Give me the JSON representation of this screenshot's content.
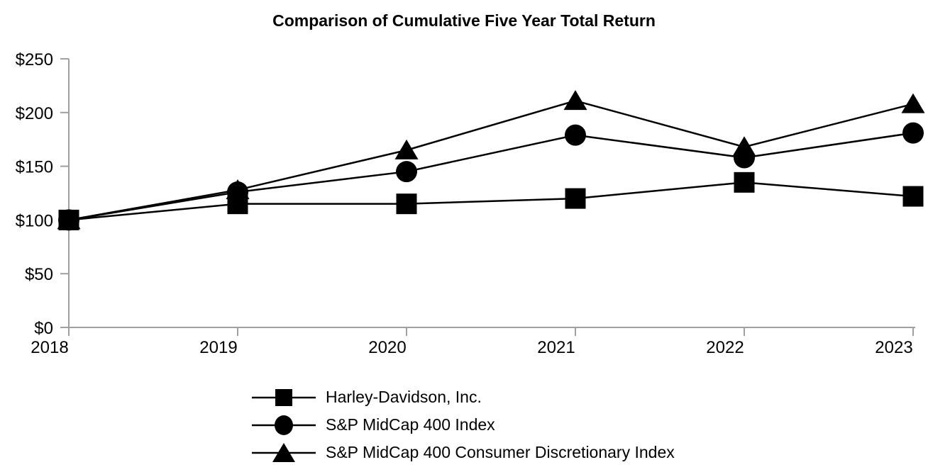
{
  "chart_data": {
    "type": "line",
    "title": "Comparison of Cumulative Five Year Total Return",
    "x_labels": [
      "2018",
      "2019",
      "2020",
      "2021",
      "2022",
      "2023"
    ],
    "y_tick_labels": [
      "$0",
      "$50",
      "$100",
      "$150",
      "$200",
      "$250"
    ],
    "ylim": [
      0,
      250
    ],
    "y_tick_interval": 50,
    "grid": false,
    "legend_position": "bottom-left",
    "axis_color": "#a0a0a0",
    "series_color": "#000000",
    "series": [
      {
        "name": "Harley-Davidson, Inc.",
        "marker": "square",
        "values": [
          100,
          115,
          115,
          120,
          135,
          122
        ]
      },
      {
        "name": "S&P MidCap 400 Index",
        "marker": "circle",
        "values": [
          100,
          126,
          145,
          179,
          158,
          181
        ]
      },
      {
        "name": "S&P MidCap 400 Consumer Discretionary Index",
        "marker": "triangle",
        "values": [
          100,
          128,
          165,
          211,
          168,
          208
        ]
      }
    ]
  }
}
